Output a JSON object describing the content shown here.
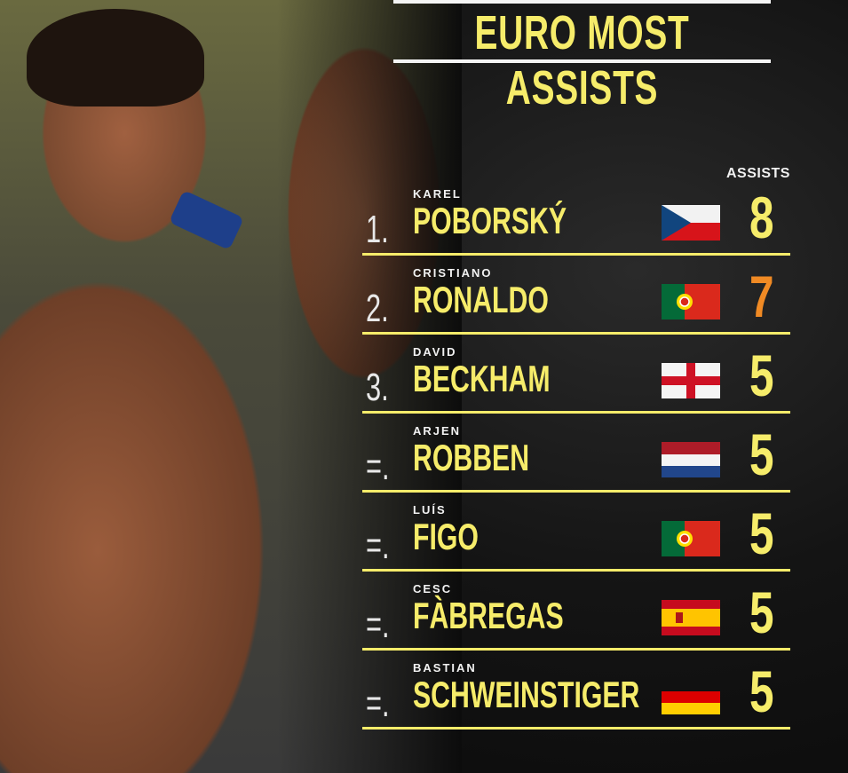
{
  "title": "EURO MOST ASSISTS",
  "column_header": "ASSISTS",
  "colors": {
    "accent": "#f6ec6a",
    "highlight": "#f08a24",
    "text": "#f2f2f2"
  },
  "rows": [
    {
      "rank": "1.",
      "first": "KAREL",
      "last": "POBORSKÝ",
      "country": "czech-republic",
      "assists": "8",
      "highlight": false
    },
    {
      "rank": "2.",
      "first": "CRISTIANO",
      "last": "RONALDO",
      "country": "portugal",
      "assists": "7",
      "highlight": true
    },
    {
      "rank": "3.",
      "first": "DAVID",
      "last": "BECKHAM",
      "country": "england",
      "assists": "5",
      "highlight": false
    },
    {
      "rank": "=.",
      "first": "ARJEN",
      "last": "ROBBEN",
      "country": "netherlands",
      "assists": "5",
      "highlight": false
    },
    {
      "rank": "=.",
      "first": "LUÍS",
      "last": "FIGO",
      "country": "portugal",
      "assists": "5",
      "highlight": false
    },
    {
      "rank": "=.",
      "first": "CESC",
      "last": "FÀBREGAS",
      "country": "spain",
      "assists": "5",
      "highlight": false
    },
    {
      "rank": "=.",
      "first": "BASTIAN",
      "last": "SCHWEINSTIGER",
      "country": "germany",
      "assists": "5",
      "highlight": false
    }
  ]
}
